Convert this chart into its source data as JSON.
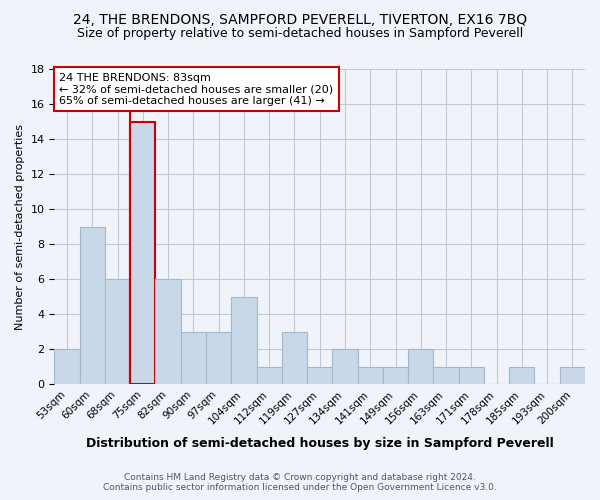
{
  "title": "24, THE BRENDONS, SAMPFORD PEVERELL, TIVERTON, EX16 7BQ",
  "subtitle": "Size of property relative to semi-detached houses in Sampford Peverell",
  "xlabel": "Distribution of semi-detached houses by size in Sampford Peverell",
  "ylabel": "Number of semi-detached properties",
  "footer_line1": "Contains HM Land Registry data © Crown copyright and database right 2024.",
  "footer_line2": "Contains public sector information licensed under the Open Government Licence v3.0.",
  "categories": [
    "53sqm",
    "60sqm",
    "68sqm",
    "75sqm",
    "82sqm",
    "90sqm",
    "97sqm",
    "104sqm",
    "112sqm",
    "119sqm",
    "127sqm",
    "134sqm",
    "141sqm",
    "149sqm",
    "156sqm",
    "163sqm",
    "171sqm",
    "178sqm",
    "185sqm",
    "193sqm",
    "200sqm"
  ],
  "values": [
    2,
    9,
    6,
    15,
    6,
    3,
    3,
    5,
    1,
    3,
    1,
    2,
    1,
    1,
    2,
    1,
    1,
    0,
    1,
    0,
    1
  ],
  "highlight_index": 3,
  "bar_color": "#c8d8e8",
  "bar_edge_color": "#a0b8cc",
  "highlight_bar_edge_color": "#cc0000",
  "vline_color": "#cc0000",
  "annotation_title": "24 THE BRENDONS: 83sqm",
  "annotation_line1": "← 32% of semi-detached houses are smaller (20)",
  "annotation_line2": "65% of semi-detached houses are larger (41) →",
  "ylim": [
    0,
    18
  ],
  "yticks": [
    0,
    2,
    4,
    6,
    8,
    10,
    12,
    14,
    16,
    18
  ],
  "bg_color": "#f0f4fa",
  "grid_color": "#c0c8d8",
  "title_fontsize": 10,
  "subtitle_fontsize": 9
}
